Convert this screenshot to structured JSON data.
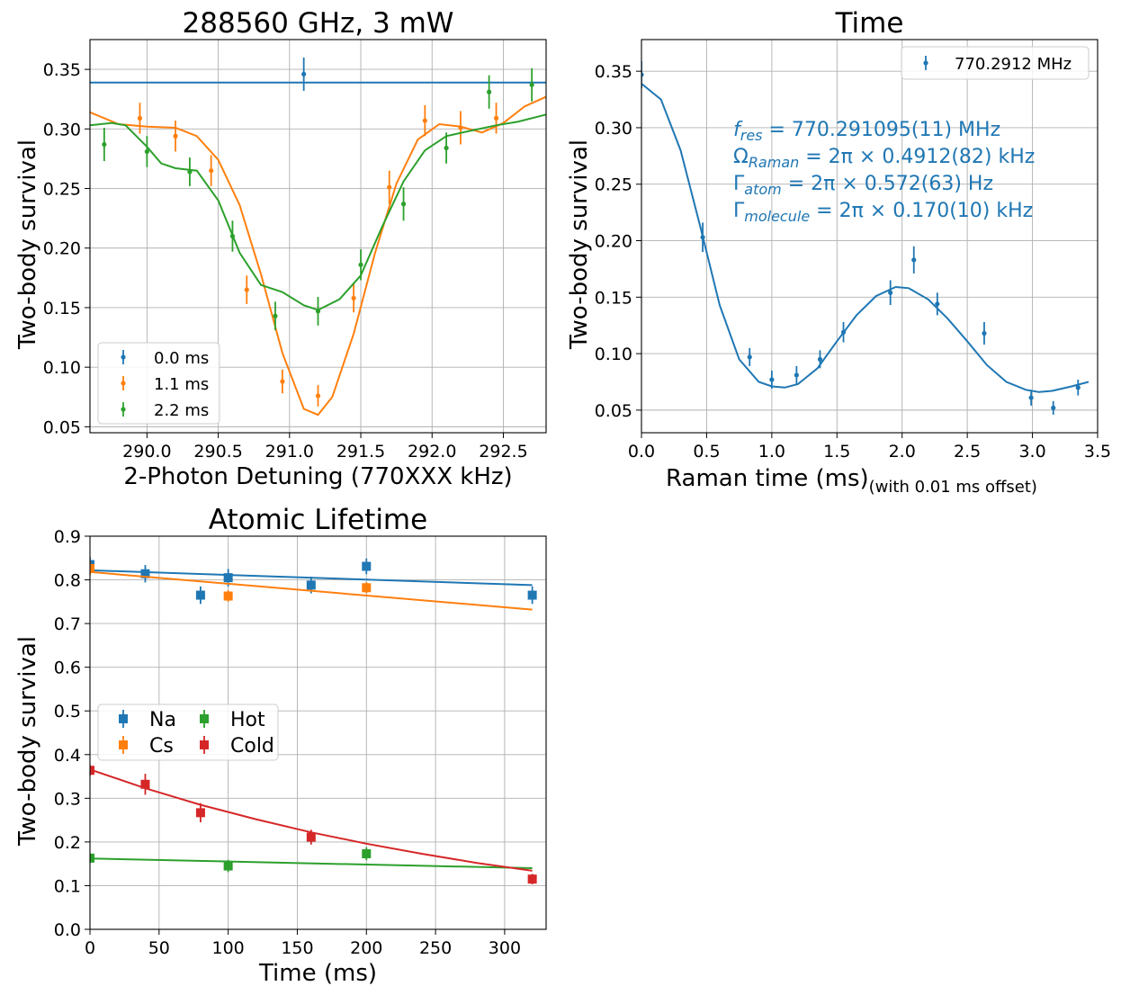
{
  "chart_data": [
    {
      "type": "scatter",
      "title": "288560 GHz, 3 mW",
      "xlabel": "2-Photon Detuning (770XXX kHz)",
      "ylabel": "Two-body survival",
      "xlim": [
        289.6,
        292.8
      ],
      "ylim": [
        0.045,
        0.375
      ],
      "xticks": [
        "290.0",
        "290.5",
        "291.0",
        "291.5",
        "292.0",
        "292.5"
      ],
      "yticks": [
        "0.05",
        "0.10",
        "0.15",
        "0.20",
        "0.25",
        "0.30",
        "0.35"
      ],
      "grid": true,
      "legend_position": "lower-left",
      "series": [
        {
          "name": "0.0 ms",
          "color": "#1f77b4",
          "x": [
            291.1
          ],
          "y": [
            0.346
          ],
          "yerr": [
            0.014
          ],
          "fit": {
            "x": [
              289.6,
              292.8
            ],
            "y": [
              0.339,
              0.339
            ]
          }
        },
        {
          "name": "1.1 ms",
          "color": "#ff7f0e",
          "x": [
            289.95,
            290.2,
            290.45,
            290.7,
            290.95,
            291.2,
            291.45,
            291.7,
            291.95,
            292.2,
            292.45
          ],
          "y": [
            0.309,
            0.294,
            0.265,
            0.165,
            0.088,
            0.076,
            0.158,
            0.251,
            0.307,
            0.301,
            0.309
          ],
          "yerr": [
            0.013,
            0.013,
            0.013,
            0.012,
            0.01,
            0.009,
            0.012,
            0.014,
            0.013,
            0.014,
            0.013
          ],
          "fit": {
            "x": [
              289.6,
              289.8,
              290.0,
              290.2,
              290.35,
              290.5,
              290.65,
              290.8,
              290.95,
              291.1,
              291.2,
              291.3,
              291.45,
              291.6,
              291.75,
              291.9,
              292.05,
              292.2,
              292.35,
              292.5,
              292.65,
              292.8
            ],
            "y": [
              0.314,
              0.304,
              0.302,
              0.301,
              0.294,
              0.274,
              0.236,
              0.178,
              0.112,
              0.065,
              0.06,
              0.075,
              0.128,
              0.196,
              0.254,
              0.291,
              0.304,
              0.302,
              0.297,
              0.305,
              0.319,
              0.327
            ]
          }
        },
        {
          "name": "2.2 ms",
          "color": "#2ca02c",
          "x": [
            289.7,
            290.0,
            290.3,
            290.6,
            290.9,
            291.2,
            291.5,
            291.8,
            292.1,
            292.4,
            292.7
          ],
          "y": [
            0.287,
            0.281,
            0.264,
            0.21,
            0.143,
            0.147,
            0.186,
            0.237,
            0.284,
            0.331,
            0.337
          ],
          "yerr": [
            0.014,
            0.013,
            0.012,
            0.013,
            0.012,
            0.012,
            0.013,
            0.014,
            0.013,
            0.014,
            0.014
          ],
          "fit": {
            "x": [
              289.6,
              289.75,
              289.85,
              290.0,
              290.1,
              290.2,
              290.35,
              290.5,
              290.65,
              290.8,
              290.95,
              291.1,
              291.2,
              291.35,
              291.5,
              291.65,
              291.8,
              291.95,
              292.1,
              292.25,
              292.45,
              292.6,
              292.8
            ],
            "y": [
              0.303,
              0.305,
              0.303,
              0.285,
              0.271,
              0.267,
              0.265,
              0.24,
              0.196,
              0.169,
              0.163,
              0.152,
              0.148,
              0.157,
              0.177,
              0.218,
              0.256,
              0.282,
              0.294,
              0.298,
              0.303,
              0.306,
              0.312
            ]
          }
        }
      ]
    },
    {
      "type": "scatter",
      "title": "Time",
      "xlabel": "Raman time (ms)",
      "xlabel_note": "(with 0.01 ms offset)",
      "ylabel": "Two-body survival",
      "xlim": [
        0,
        3.5
      ],
      "ylim": [
        0.03,
        0.378
      ],
      "xticks": [
        "0.0",
        "0.5",
        "1.0",
        "1.5",
        "2.0",
        "2.5",
        "3.0",
        "3.5"
      ],
      "yticks": [
        "0.05",
        "0.10",
        "0.15",
        "0.20",
        "0.25",
        "0.30",
        "0.35"
      ],
      "grid": true,
      "legend_position": "top-right",
      "annotation_color": "#1f77b4",
      "annotations": [
        {
          "sym": "f",
          "sub": "res",
          "rest": " = 770.291095(11) MHz",
          "italic": true
        },
        {
          "sym": "Ω",
          "sub": "Raman",
          "rest": " = 2π × 0.4912(82) kHz",
          "italic": false
        },
        {
          "sym": "Γ",
          "sub": "atom",
          "rest": " = 2π × 0.572(63) Hz",
          "italic": false
        },
        {
          "sym": "Γ",
          "sub": "molecule",
          "rest": " = 2π × 0.170(10) kHz",
          "italic": false
        }
      ],
      "series": [
        {
          "name": "770.2912 MHz",
          "color": "#1f77b4",
          "x": [
            0.0,
            0.47,
            0.83,
            1.0,
            1.19,
            1.37,
            1.55,
            1.91,
            2.09,
            2.27,
            2.63,
            2.99,
            3.16,
            3.35
          ],
          "y": [
            0.347,
            0.203,
            0.097,
            0.077,
            0.081,
            0.095,
            0.119,
            0.154,
            0.183,
            0.144,
            0.118,
            0.061,
            0.052,
            0.07
          ],
          "yerr": [
            0.012,
            0.013,
            0.008,
            0.008,
            0.008,
            0.008,
            0.009,
            0.011,
            0.012,
            0.01,
            0.01,
            0.007,
            0.006,
            0.007
          ],
          "fit": {
            "x": [
              0.0,
              0.15,
              0.3,
              0.45,
              0.6,
              0.75,
              0.9,
              1.0,
              1.1,
              1.2,
              1.35,
              1.5,
              1.65,
              1.8,
              1.95,
              2.05,
              2.2,
              2.35,
              2.5,
              2.65,
              2.8,
              2.95,
              3.05,
              3.15,
              3.3,
              3.43
            ],
            "y": [
              0.339,
              0.325,
              0.28,
              0.213,
              0.143,
              0.095,
              0.075,
              0.071,
              0.07,
              0.073,
              0.087,
              0.111,
              0.134,
              0.151,
              0.159,
              0.158,
              0.148,
              0.131,
              0.111,
              0.09,
              0.075,
              0.068,
              0.066,
              0.067,
              0.071,
              0.075
            ]
          }
        }
      ]
    },
    {
      "type": "scatter",
      "title": "Atomic Lifetime",
      "xlabel": "Time (ms)",
      "ylabel": "Two-body survival",
      "xlim": [
        0,
        330
      ],
      "ylim": [
        0.0,
        0.9
      ],
      "xticks": [
        "0",
        "50",
        "100",
        "150",
        "200",
        "250",
        "300"
      ],
      "yticks": [
        "0.0",
        "0.1",
        "0.2",
        "0.3",
        "0.4",
        "0.5",
        "0.6",
        "0.7",
        "0.8",
        "0.9"
      ],
      "grid": true,
      "legend_position": "center-left",
      "series": [
        {
          "name": "Na",
          "color": "#1f77b4",
          "x": [
            0,
            40,
            80,
            100,
            160,
            200,
            320
          ],
          "y": [
            0.835,
            0.814,
            0.765,
            0.805,
            0.788,
            0.831,
            0.765
          ],
          "yerr": [
            0.017,
            0.02,
            0.02,
            0.02,
            0.019,
            0.018,
            0.02
          ],
          "fit": {
            "x": [
              0,
              320
            ],
            "y": [
              0.822,
              0.788
            ]
          }
        },
        {
          "name": "Cs",
          "color": "#ff7f0e",
          "x": [
            0,
            100,
            200
          ],
          "y": [
            0.826,
            0.763,
            0.782
          ],
          "yerr": [
            0.015,
            0.013,
            0.013
          ],
          "fit": {
            "x": [
              0,
              320
            ],
            "y": [
              0.818,
              0.732
            ]
          }
        },
        {
          "name": "Hot",
          "color": "#2ca02c",
          "x": [
            0,
            100,
            200
          ],
          "y": [
            0.163,
            0.145,
            0.173
          ],
          "yerr": [
            0.011,
            0.014,
            0.015
          ],
          "fit": {
            "x": [
              0,
              320
            ],
            "y": [
              0.162,
              0.14
            ]
          }
        },
        {
          "name": "Cold",
          "color": "#d62728",
          "x": [
            0,
            40,
            80,
            160,
            320
          ],
          "y": [
            0.364,
            0.332,
            0.267,
            0.211,
            0.115
          ],
          "yerr": [
            0.012,
            0.024,
            0.022,
            0.017,
            0.012
          ],
          "fit": {
            "x": [
              0,
              40,
              80,
              120,
              160,
              200,
              240,
              280,
              320
            ],
            "y": [
              0.366,
              0.323,
              0.285,
              0.252,
              0.222,
              0.196,
              0.173,
              0.152,
              0.134
            ]
          }
        }
      ]
    }
  ]
}
